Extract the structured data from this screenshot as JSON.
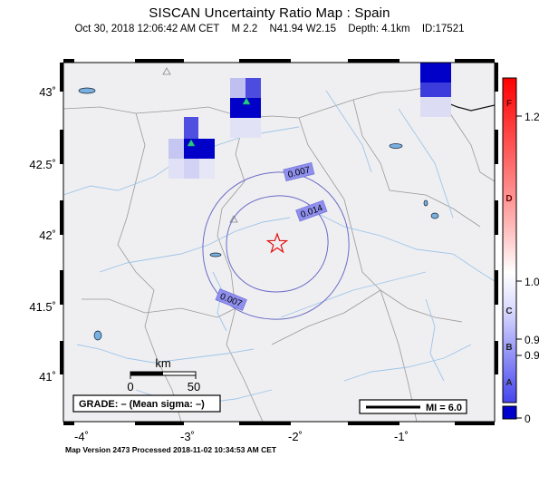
{
  "title": "SISCAN Uncertainty Ratio Map : Spain",
  "subtitle": {
    "datetime": "Oct 30, 2018 12:06:42 AM CET",
    "magnitude": "M 2.2",
    "location": "N41.94 W2.15",
    "depth": "Depth: 4.1km",
    "id": "ID:17521"
  },
  "axes": {
    "x_ticks": [
      "-4˚",
      "-3˚",
      "-2˚",
      "-1˚"
    ],
    "y_ticks": [
      "43˚",
      "42.5˚",
      "42˚",
      "41.5˚",
      "41˚"
    ]
  },
  "scale_bar": {
    "unit": "km",
    "start": "0",
    "end": "50"
  },
  "grade_box": "GRADE: – (Mean sigma: –)",
  "mi_legend": "MI = 6.0",
  "contour_labels": [
    "0.007",
    "0.014",
    "0.007"
  ],
  "colorbar": {
    "letters": [
      "F",
      "D",
      "C",
      "B",
      "A"
    ],
    "value_labels": [
      "1.2",
      "1.0",
      "0.9",
      "0.9",
      "0"
    ],
    "colors": {
      "top": "#ff0000",
      "mid": "#ffffff",
      "bottom": "#0000cc"
    }
  },
  "footer": "Map Version 2473 Processed 2018-11-02 10:34:53 AM CET",
  "markers": {
    "epicenter": "red-star",
    "stations_active": "green-triangle",
    "stations_inactive": "grey-open-triangle"
  }
}
